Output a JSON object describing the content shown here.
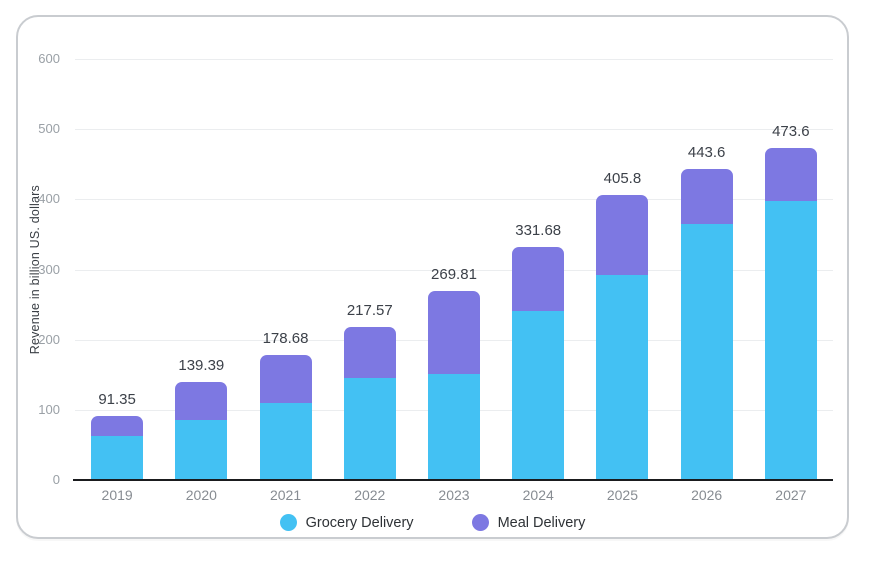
{
  "card": {
    "legend": [
      {
        "label": "Grocery Delivery",
        "color": "#43c1f3"
      },
      {
        "label": "Meal Delivery",
        "color": "#7d78e2"
      }
    ]
  },
  "chart_data": {
    "type": "bar",
    "stacked": true,
    "title": "",
    "xlabel": "",
    "ylabel": "Revenue in billion US. dollars",
    "ylim": [
      0,
      600
    ],
    "yticks": [
      0,
      100,
      200,
      300,
      400,
      500,
      600
    ],
    "grid": "horizontal-only",
    "legend_position": "bottom-center",
    "categories": [
      "2019",
      "2020",
      "2021",
      "2022",
      "2023",
      "2024",
      "2025",
      "2026",
      "2027"
    ],
    "series": [
      {
        "name": "Grocery Delivery",
        "color": "#43c1f3",
        "values": [
          63.0,
          85.0,
          110.0,
          145.0,
          151.0,
          241.0,
          292.0,
          365.0,
          398.0
        ]
      },
      {
        "name": "Meal Delivery",
        "color": "#7d78e2",
        "values": [
          28.35,
          54.39,
          68.68,
          72.57,
          118.81,
          90.68,
          113.8,
          78.6,
          75.6
        ]
      }
    ],
    "totals": [
      91.35,
      139.39,
      178.68,
      217.57,
      269.81,
      331.68,
      405.8,
      443.6,
      473.6
    ],
    "total_labels": [
      "91.35",
      "139.39",
      "178.68",
      "217.57",
      "269.81",
      "331.68",
      "405.8",
      "443.6",
      "473.6"
    ],
    "colors": {
      "gridline": "#ebedef",
      "axis_line": "#1a1b1e",
      "tick_label": "#9aa0a6",
      "category_label": "#878c92",
      "value_label": "#3c4149",
      "axis_title": "#3a3f45",
      "card_border": "#c9ccd0"
    }
  }
}
